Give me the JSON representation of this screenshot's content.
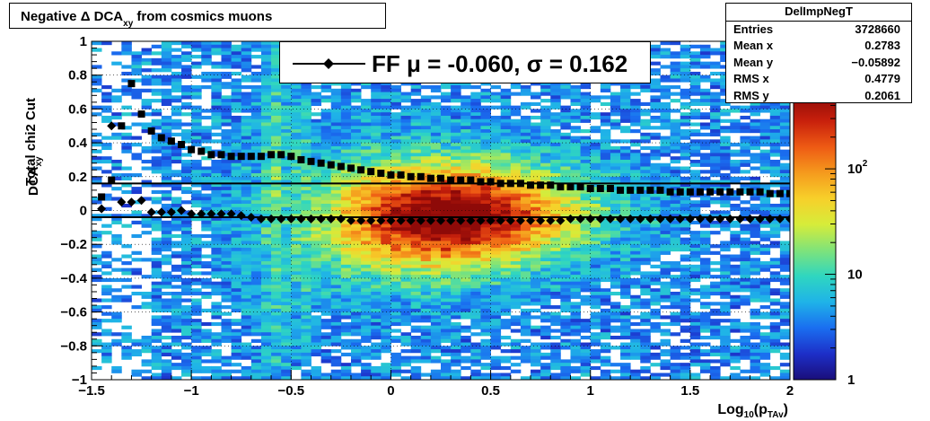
{
  "chart_data": {
    "type": "heatmap",
    "title": "Negative Δ DCA",
    "title_sub": "xy",
    "title_rest": " from cosmics muons",
    "xlabel_main": "Log",
    "xlabel_sub1": "10",
    "xlabel_mid": "(p",
    "xlabel_sub2": "TAv",
    "xlabel_end": ")",
    "ylabel_line1": "Total chi2 Cut",
    "ylabel_line2_main": "DCA",
    "ylabel_line2_sub": "xy",
    "xlim": [
      -1.5,
      2
    ],
    "ylim": [
      -1,
      1
    ],
    "x_ticks": [
      {
        "v": -1.5,
        "label": "−1.5"
      },
      {
        "v": -1,
        "label": "−1"
      },
      {
        "v": -0.5,
        "label": "−0.5"
      },
      {
        "v": 0,
        "label": "0"
      },
      {
        "v": 0.5,
        "label": "0.5"
      },
      {
        "v": 1,
        "label": "1"
      },
      {
        "v": 1.5,
        "label": "1.5"
      },
      {
        "v": 2,
        "label": "2"
      }
    ],
    "y_ticks": [
      {
        "v": 1,
        "label": "1"
      },
      {
        "v": 0.8,
        "label": "0.8"
      },
      {
        "v": 0.6,
        "label": "0.6"
      },
      {
        "v": 0.4,
        "label": "0.4"
      },
      {
        "v": 0.2,
        "label": "0.2"
      },
      {
        "v": 0,
        "label": "0"
      },
      {
        "v": -0.2,
        "label": "−0.2"
      },
      {
        "v": -0.4,
        "label": "−0.4"
      },
      {
        "v": -0.6,
        "label": "−0.6"
      },
      {
        "v": -0.8,
        "label": "−0.8"
      },
      {
        "v": -1,
        "label": "−1"
      }
    ],
    "grid": true,
    "colorbar": {
      "scale": "log",
      "range": [
        1,
        500
      ],
      "ticks": [
        {
          "v": 1,
          "label": "1",
          "sup": ""
        },
        {
          "v": 10,
          "label": "10",
          "sup": ""
        },
        {
          "v": 100,
          "label": "10",
          "sup": "2"
        }
      ],
      "colors": [
        "#1a0e7a",
        "#1d2fc8",
        "#1a6ef0",
        "#1fb3e8",
        "#2fd6c0",
        "#7fe37a",
        "#d6ec3a",
        "#f7d02a",
        "#f59a1d",
        "#ee5a14",
        "#c8200c",
        "#8e0a08"
      ]
    },
    "horizontal_lines": [
      0.16,
      -0.04
    ],
    "series": [
      {
        "marker": "square",
        "x": [
          -1.45,
          -1.4,
          -1.35,
          -1.3,
          -1.25,
          -1.2,
          -1.15,
          -1.1,
          -1.05,
          -1.0,
          -0.95,
          -0.9,
          -0.85,
          -0.8,
          -0.75,
          -0.7,
          -0.65,
          -0.6,
          -0.55,
          -0.5,
          -0.45,
          -0.4,
          -0.35,
          -0.3,
          -0.25,
          -0.2,
          -0.15,
          -0.1,
          -0.05,
          0.0,
          0.05,
          0.1,
          0.15,
          0.2,
          0.25,
          0.3,
          0.35,
          0.4,
          0.45,
          0.5,
          0.55,
          0.6,
          0.65,
          0.7,
          0.75,
          0.8,
          0.85,
          0.9,
          0.95,
          1.0,
          1.05,
          1.1,
          1.15,
          1.2,
          1.25,
          1.3,
          1.35,
          1.4,
          1.45,
          1.5,
          1.55,
          1.6,
          1.65,
          1.7,
          1.75,
          1.8,
          1.85,
          1.9,
          1.95,
          2.0
        ],
        "values": [
          0.08,
          0.18,
          0.5,
          0.75,
          0.57,
          0.47,
          0.43,
          0.41,
          0.39,
          0.36,
          0.35,
          0.33,
          0.33,
          0.32,
          0.32,
          0.32,
          0.32,
          0.33,
          0.33,
          0.32,
          0.3,
          0.29,
          0.28,
          0.27,
          0.26,
          0.25,
          0.24,
          0.23,
          0.22,
          0.21,
          0.21,
          0.2,
          0.2,
          0.19,
          0.19,
          0.18,
          0.18,
          0.18,
          0.17,
          0.17,
          0.16,
          0.16,
          0.16,
          0.15,
          0.15,
          0.15,
          0.14,
          0.14,
          0.14,
          0.13,
          0.13,
          0.13,
          0.12,
          0.12,
          0.12,
          0.12,
          0.12,
          0.11,
          0.11,
          0.11,
          0.11,
          0.11,
          0.11,
          0.11,
          0.11,
          0.11,
          0.11,
          0.1,
          0.1,
          0.1
        ]
      },
      {
        "marker": "diamond",
        "x": [
          -1.45,
          -1.4,
          -1.35,
          -1.3,
          -1.25,
          -1.2,
          -1.15,
          -1.1,
          -1.05,
          -1.0,
          -0.95,
          -0.9,
          -0.85,
          -0.8,
          -0.75,
          -0.7,
          -0.65,
          -0.6,
          -0.55,
          -0.5,
          -0.45,
          -0.4,
          -0.35,
          -0.3,
          -0.25,
          -0.2,
          -0.15,
          -0.1,
          -0.05,
          0.0,
          0.05,
          0.1,
          0.15,
          0.2,
          0.25,
          0.3,
          0.35,
          0.4,
          0.45,
          0.5,
          0.55,
          0.6,
          0.65,
          0.7,
          0.75,
          0.8,
          0.85,
          0.9,
          0.95,
          1.0,
          1.05,
          1.1,
          1.15,
          1.2,
          1.25,
          1.3,
          1.35,
          1.4,
          1.45,
          1.5,
          1.55,
          1.6,
          1.65,
          1.7,
          1.75,
          1.8,
          1.85,
          1.9,
          1.95,
          2.0
        ],
        "values": [
          0.01,
          0.5,
          0.05,
          0.05,
          0.06,
          -0.01,
          -0.01,
          -0.01,
          0.0,
          -0.02,
          -0.02,
          -0.02,
          -0.02,
          -0.02,
          -0.03,
          -0.04,
          -0.05,
          -0.05,
          -0.05,
          -0.05,
          -0.05,
          -0.05,
          -0.05,
          -0.05,
          -0.05,
          -0.06,
          -0.06,
          -0.06,
          -0.06,
          -0.06,
          -0.06,
          -0.06,
          -0.06,
          -0.06,
          -0.06,
          -0.06,
          -0.06,
          -0.06,
          -0.06,
          -0.06,
          -0.06,
          -0.06,
          -0.06,
          -0.06,
          -0.06,
          -0.06,
          -0.06,
          -0.05,
          -0.05,
          -0.05,
          -0.05,
          -0.05,
          -0.05,
          -0.05,
          -0.05,
          -0.05,
          -0.05,
          -0.05,
          -0.05,
          -0.05,
          -0.05,
          -0.05,
          -0.05,
          -0.05,
          -0.05,
          -0.05,
          -0.05,
          -0.05,
          -0.05,
          -0.05
        ]
      }
    ]
  },
  "legend": {
    "text_main": "FF μ = -0.060, σ =   0.162"
  },
  "stats": {
    "name": "DelImpNegT",
    "rows": [
      {
        "label": "Entries",
        "value": "3728660"
      },
      {
        "label": "Mean x",
        "value": "0.2783"
      },
      {
        "label": "Mean y",
        "value": "−0.05892"
      },
      {
        "label": "RMS x",
        "value": "0.4779"
      },
      {
        "label": "RMS y",
        "value": "0.2061"
      }
    ]
  }
}
